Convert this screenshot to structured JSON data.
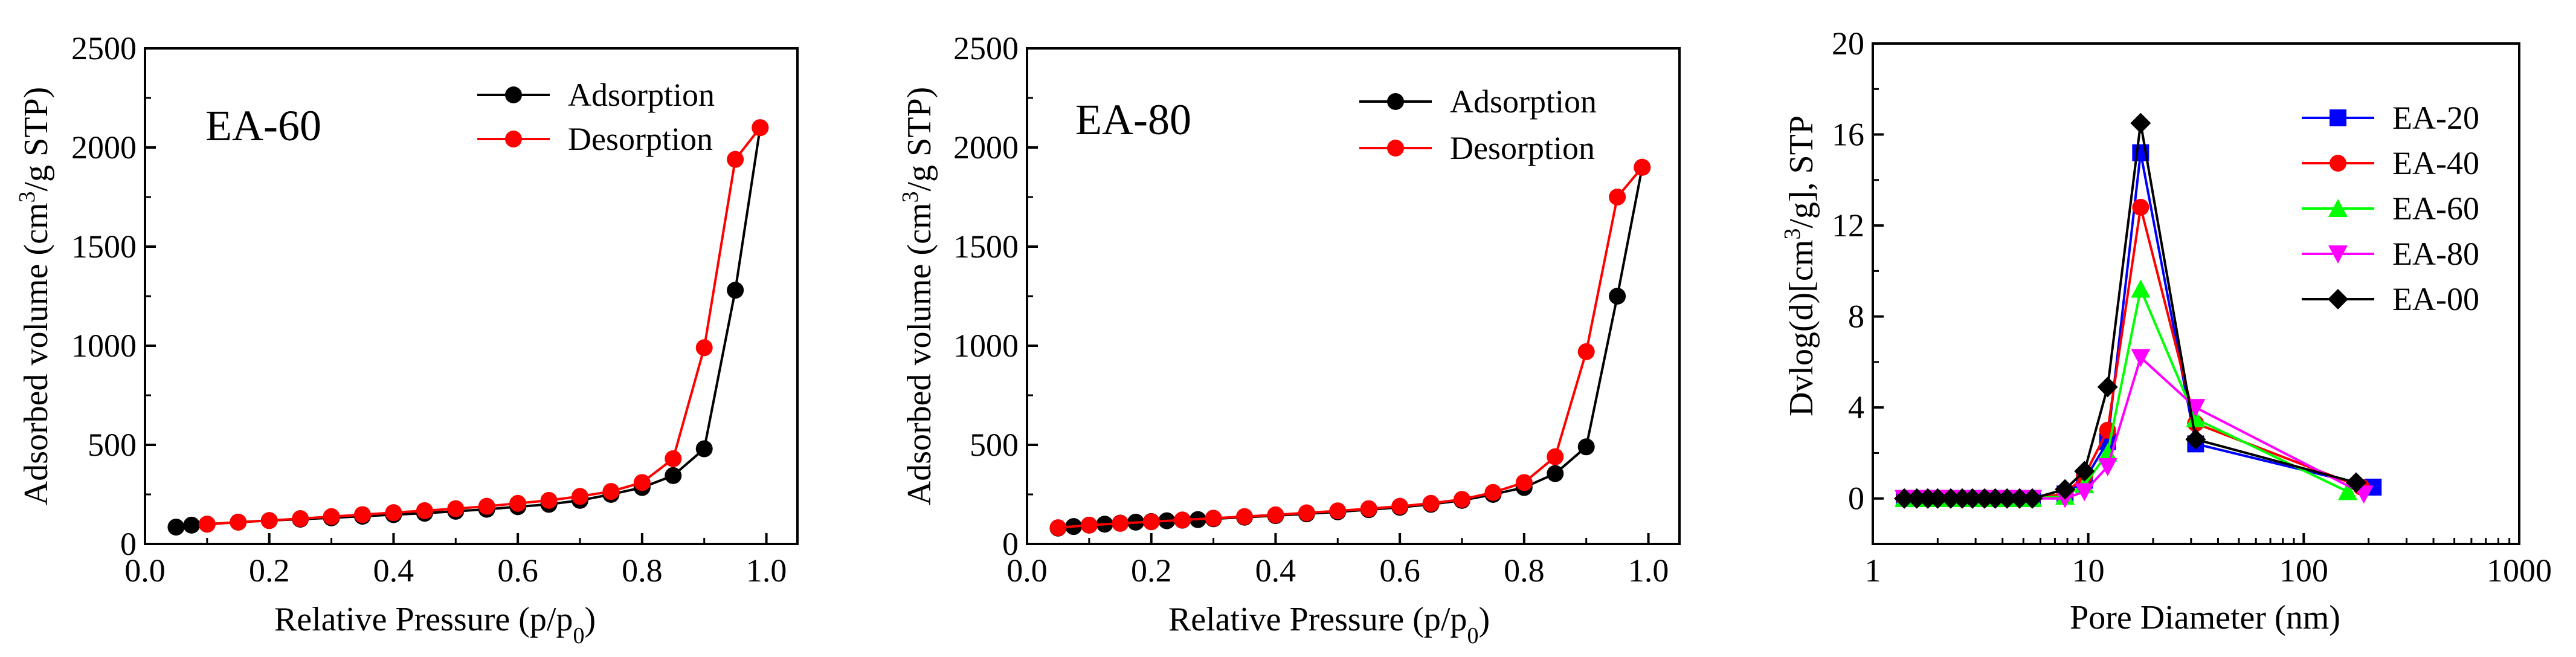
{
  "chart_data": [
    {
      "type": "line",
      "panel_label": "EA-60",
      "xlabel_main": "Relative Pressure (p/p",
      "xlabel_sub": "0",
      "xlabel_end": ")",
      "ylabel_main": "Adsorbed volume (cm",
      "ylabel_sup": "3",
      "ylabel_end": "/g STP)",
      "xlim": [
        0.0,
        1.05
      ],
      "ylim": [
        0,
        2500
      ],
      "x_ticks": [
        0.0,
        0.2,
        0.4,
        0.6,
        0.8,
        1.0
      ],
      "x_tick_labels": [
        "0.0",
        "0.2",
        "0.4",
        "0.6",
        "0.8",
        "1.0"
      ],
      "y_ticks": [
        0,
        500,
        1000,
        1500,
        2000,
        2500
      ],
      "y_tick_labels": [
        "0",
        "500",
        "1000",
        "1500",
        "2000",
        "2500"
      ],
      "legend_position": "top-right",
      "series": [
        {
          "name": "Adsorption",
          "color": "#000000",
          "marker": "circle",
          "x": [
            0.05,
            0.075,
            0.1,
            0.15,
            0.2,
            0.25,
            0.3,
            0.35,
            0.4,
            0.45,
            0.5,
            0.55,
            0.6,
            0.65,
            0.7,
            0.75,
            0.8,
            0.85,
            0.9,
            0.95,
            0.99
          ],
          "y": [
            85,
            95,
            100,
            110,
            118,
            125,
            132,
            140,
            148,
            155,
            165,
            175,
            188,
            200,
            220,
            250,
            285,
            345,
            480,
            1280,
            2100
          ]
        },
        {
          "name": "Desorption",
          "color": "#ff0000",
          "marker": "circle",
          "x": [
            0.99,
            0.95,
            0.9,
            0.85,
            0.8,
            0.75,
            0.7,
            0.65,
            0.6,
            0.55,
            0.5,
            0.45,
            0.4,
            0.35,
            0.3,
            0.25,
            0.2,
            0.15,
            0.1
          ],
          "y": [
            2100,
            1940,
            990,
            430,
            310,
            265,
            240,
            220,
            205,
            190,
            178,
            168,
            158,
            148,
            138,
            128,
            118,
            110,
            100
          ]
        }
      ]
    },
    {
      "type": "line",
      "panel_label": "EA-80",
      "xlabel_main": "Relative Pressure (p/p",
      "xlabel_sub": "0",
      "xlabel_end": ")",
      "ylabel_main": "Adsorbed volume (cm",
      "ylabel_sup": "3",
      "ylabel_end": "/g STP)",
      "xlim": [
        0.0,
        1.05
      ],
      "ylim": [
        0,
        2500
      ],
      "x_ticks": [
        0.0,
        0.2,
        0.4,
        0.6,
        0.8,
        1.0
      ],
      "x_tick_labels": [
        "0.0",
        "0.2",
        "0.4",
        "0.6",
        "0.8",
        "1.0"
      ],
      "y_ticks": [
        0,
        500,
        1000,
        1500,
        2000,
        2500
      ],
      "y_tick_labels": [
        "0",
        "500",
        "1000",
        "1500",
        "2000",
        "2500"
      ],
      "legend_position": "top-right",
      "series": [
        {
          "name": "Adsorption",
          "color": "#000000",
          "marker": "circle",
          "x": [
            0.05,
            0.075,
            0.1,
            0.125,
            0.15,
            0.175,
            0.2,
            0.225,
            0.25,
            0.275,
            0.3,
            0.35,
            0.4,
            0.45,
            0.5,
            0.55,
            0.6,
            0.65,
            0.7,
            0.75,
            0.8,
            0.85,
            0.9,
            0.95,
            0.99
          ],
          "y": [
            80,
            88,
            95,
            100,
            105,
            110,
            113,
            117,
            120,
            123,
            127,
            135,
            143,
            152,
            162,
            173,
            185,
            200,
            220,
            250,
            285,
            355,
            490,
            1250,
            1900
          ]
        },
        {
          "name": "Desorption",
          "color": "#ff0000",
          "marker": "circle",
          "x": [
            0.99,
            0.95,
            0.9,
            0.85,
            0.8,
            0.75,
            0.7,
            0.65,
            0.6,
            0.55,
            0.5,
            0.45,
            0.4,
            0.35,
            0.3,
            0.25,
            0.2,
            0.15,
            0.1,
            0.05
          ],
          "y": [
            1900,
            1750,
            970,
            440,
            310,
            260,
            225,
            205,
            190,
            178,
            167,
            157,
            147,
            138,
            130,
            121,
            112,
            104,
            95,
            82
          ]
        }
      ]
    },
    {
      "type": "line",
      "xscale": "log",
      "xlabel": "Pore Diameter (nm)",
      "ylabel_main": "Dvlog(d)[cm",
      "ylabel_sup": "3",
      "ylabel_end": "/g], STP",
      "xlim": [
        1,
        1000
      ],
      "ylim": [
        -2,
        20
      ],
      "x_ticks": [
        1,
        10,
        100,
        1000
      ],
      "x_tick_labels": [
        "1",
        "10",
        "100",
        "1000"
      ],
      "y_ticks": [
        0,
        4,
        8,
        12,
        16,
        20
      ],
      "y_tick_labels": [
        "0",
        "4",
        "8",
        "12",
        "16",
        "20"
      ],
      "legend_position": "top-right",
      "series": [
        {
          "name": "EA-20",
          "color": "#0000ff",
          "marker": "square",
          "x": [
            1.4,
            1.6,
            1.8,
            2.0,
            2.3,
            2.6,
            2.9,
            3.3,
            3.7,
            4.2,
            4.8,
            5.5,
            7.8,
            9.6,
            12.3,
            17.5,
            31.5,
            210
          ],
          "y": [
            0,
            0,
            0,
            0,
            0,
            0,
            0,
            0,
            0,
            0,
            0,
            0,
            0.2,
            0.8,
            2.5,
            15.2,
            2.4,
            0.5
          ]
        },
        {
          "name": "EA-40",
          "color": "#ff0000",
          "marker": "circle",
          "x": [
            1.4,
            1.6,
            1.8,
            2.0,
            2.3,
            2.6,
            2.9,
            3.3,
            3.7,
            4.2,
            4.8,
            5.5,
            7.8,
            9.6,
            12.3,
            17.5,
            31.5,
            185
          ],
          "y": [
            0,
            0,
            0,
            0,
            0,
            0,
            0,
            0,
            0,
            0,
            0,
            0,
            0.2,
            1.0,
            3.0,
            12.8,
            3.3,
            0.5
          ]
        },
        {
          "name": "EA-60",
          "color": "#00ff00",
          "marker": "triangle-up",
          "x": [
            1.4,
            1.6,
            1.8,
            2.0,
            2.3,
            2.6,
            2.9,
            3.3,
            3.7,
            4.2,
            4.8,
            5.5,
            7.8,
            9.6,
            12.3,
            17.5,
            31.5,
            160
          ],
          "y": [
            0,
            0,
            0,
            0,
            0,
            0,
            0,
            0,
            0,
            0,
            0,
            0,
            0.1,
            0.6,
            2.0,
            9.2,
            3.5,
            0.3
          ]
        },
        {
          "name": "EA-80",
          "color": "#ff00ff",
          "marker": "triangle-down",
          "x": [
            1.4,
            1.6,
            1.8,
            2.0,
            2.3,
            2.6,
            2.9,
            3.3,
            3.7,
            4.2,
            4.8,
            5.5,
            7.8,
            9.6,
            12.3,
            17.5,
            31.5,
            190
          ],
          "y": [
            0,
            0,
            0,
            0,
            0,
            0,
            0,
            0,
            0,
            0,
            0,
            0,
            0,
            0.3,
            1.4,
            6.2,
            4.0,
            0.2
          ]
        },
        {
          "name": "EA-00",
          "color": "#000000",
          "marker": "diamond",
          "x": [
            1.4,
            1.6,
            1.8,
            2.0,
            2.3,
            2.6,
            2.9,
            3.3,
            3.7,
            4.2,
            4.8,
            5.5,
            7.8,
            9.6,
            12.3,
            17.5,
            31.5,
            175
          ],
          "y": [
            0,
            0,
            0,
            0,
            0,
            0,
            0,
            0,
            0,
            0,
            0,
            0,
            0.4,
            1.2,
            4.9,
            16.5,
            2.6,
            0.7
          ]
        }
      ]
    }
  ]
}
